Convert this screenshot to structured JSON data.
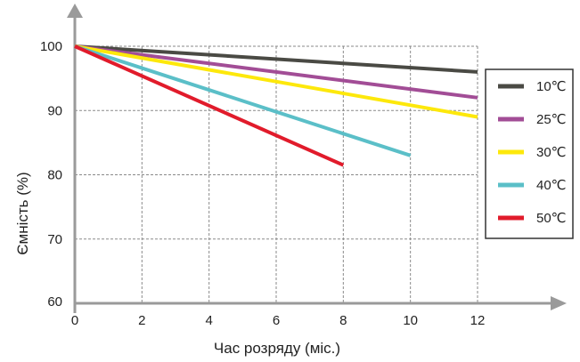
{
  "chart_data": {
    "type": "line",
    "xlabel": "Час розряду (міс.)",
    "ylabel": "Ємність (%)",
    "xlim": [
      0,
      12
    ],
    "ylim": [
      60,
      100
    ],
    "xticks": [
      "0",
      "2",
      "4",
      "6",
      "8",
      "10",
      "12"
    ],
    "yticks": [
      "60",
      "70",
      "80",
      "90",
      "100"
    ],
    "grid": true,
    "legend_position": "right",
    "series": [
      {
        "name": "10℃",
        "color": "#4a4a44",
        "x": [
          0,
          12
        ],
        "y": [
          100,
          96
        ]
      },
      {
        "name": "25℃",
        "color": "#a24d96",
        "x": [
          0,
          12
        ],
        "y": [
          100,
          92
        ]
      },
      {
        "name": "30℃",
        "color": "#fde80b",
        "x": [
          0,
          12
        ],
        "y": [
          100,
          89
        ]
      },
      {
        "name": "40℃",
        "color": "#5bbfc8",
        "x": [
          0,
          10
        ],
        "y": [
          100,
          83
        ]
      },
      {
        "name": "50℃",
        "color": "#e11b2b",
        "x": [
          0,
          8
        ],
        "y": [
          100,
          81.5
        ]
      }
    ]
  }
}
